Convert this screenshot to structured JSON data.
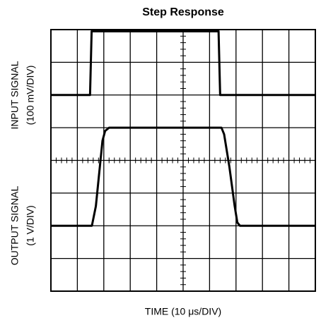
{
  "chart_data": {
    "type": "line",
    "title": "Step Response",
    "x_label": "TIME (10 μs/DIV)",
    "y_label_top": [
      "INPUT SIGNAL",
      "(100 mV/DIV)"
    ],
    "y_label_bottom": [
      "OUTPUT SIGNAL",
      "(1 V/DIV)"
    ],
    "xlim": [
      0,
      10
    ],
    "ylim": [
      0,
      8
    ],
    "xticks": [
      0,
      1,
      2,
      3,
      4,
      5,
      6,
      7,
      8,
      9,
      10
    ],
    "yticks": [
      0,
      1,
      2,
      3,
      4,
      5,
      6,
      7,
      8
    ],
    "grid": true,
    "series": [
      {
        "color": "#000000",
        "x": [
          0,
          1.48,
          1.54,
          6.34,
          6.4,
          10
        ],
        "values": [
          6,
          6,
          7.95,
          7.95,
          6,
          6
        ]
      },
      {
        "color": "#000000",
        "x": [
          0,
          1.55,
          1.7,
          1.85,
          1.95,
          2.05,
          2.2,
          6.45,
          6.55,
          6.75,
          6.95,
          7.05,
          7.15,
          10
        ],
        "values": [
          2,
          2,
          2.6,
          3.8,
          4.6,
          4.9,
          5,
          5,
          4.8,
          3.8,
          2.6,
          2.1,
          2,
          2
        ]
      }
    ]
  }
}
